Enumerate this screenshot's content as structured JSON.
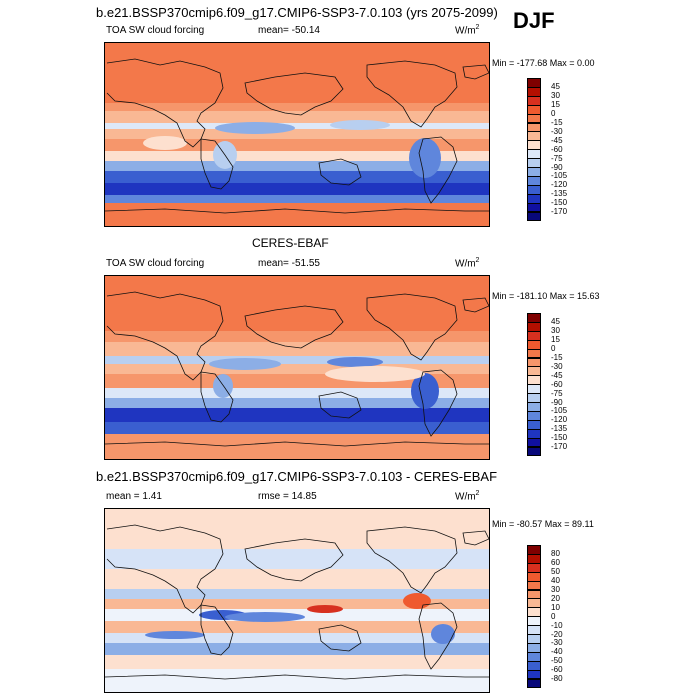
{
  "season": "DJF",
  "panels": [
    {
      "title": "b.e21.BSSP370cmip6.f09_g17.CMIP6-SSP3-7.0.103 (yrs 2075-2099)",
      "left_label": "TOA SW cloud forcing",
      "mean_text": "mean= -50.14",
      "unit_base": "W/m",
      "unit_sup": "2",
      "minmax": "Min = -177.68 Max =   0.00",
      "colorbar": {
        "labels": [
          "45",
          "30",
          "15",
          "0",
          "-15",
          "-30",
          "-45",
          "-60",
          "-75",
          "-90",
          "-105",
          "-120",
          "-135",
          "-150",
          "-170"
        ],
        "colors": [
          "#7f0000",
          "#b30f00",
          "#d7301f",
          "#ef5a2f",
          "#f3784a",
          "#f6966b",
          "#f9b894",
          "#fde0cf",
          "#dde8f8",
          "#b8cff0",
          "#8caee6",
          "#5f86dc",
          "#3a5fd0",
          "#1f35c0",
          "#1010a0",
          "#08087a"
        ]
      }
    },
    {
      "title": "CERES-EBAF",
      "left_label": "TOA SW cloud forcing",
      "mean_text": "mean= -51.55",
      "unit_base": "W/m",
      "unit_sup": "2",
      "minmax": "Min = -181.10 Max =  15.63",
      "colorbar": {
        "labels": [
          "45",
          "30",
          "15",
          "0",
          "-15",
          "-30",
          "-45",
          "-60",
          "-75",
          "-90",
          "-105",
          "-120",
          "-135",
          "-150",
          "-170"
        ],
        "colors": [
          "#7f0000",
          "#b30f00",
          "#d7301f",
          "#ef5a2f",
          "#f3784a",
          "#f6966b",
          "#f9b894",
          "#fde0cf",
          "#dde8f8",
          "#b8cff0",
          "#8caee6",
          "#5f86dc",
          "#3a5fd0",
          "#1f35c0",
          "#1010a0",
          "#08087a"
        ]
      }
    },
    {
      "title": "b.e21.BSSP370cmip6.f09_g17.CMIP6-SSP3-7.0.103 - CERES-EBAF",
      "left_label": "mean =   1.41",
      "mean_text": "rmse =  14.85",
      "unit_base": "W/m",
      "unit_sup": "2",
      "minmax": "Min = -80.57 Max =  89.11",
      "colorbar": {
        "labels": [
          "80",
          "60",
          "50",
          "40",
          "30",
          "20",
          "10",
          "0",
          "-10",
          "-20",
          "-30",
          "-40",
          "-50",
          "-60",
          "-80"
        ],
        "colors": [
          "#7f0000",
          "#b30f00",
          "#d7301f",
          "#ef5a2f",
          "#f3784a",
          "#f6966b",
          "#f9b894",
          "#fde0cf",
          "#eef3fb",
          "#d6e3f7",
          "#b8cff0",
          "#8caee6",
          "#5f86dc",
          "#3a5fd0",
          "#1f35c0",
          "#08087a"
        ]
      }
    }
  ]
}
